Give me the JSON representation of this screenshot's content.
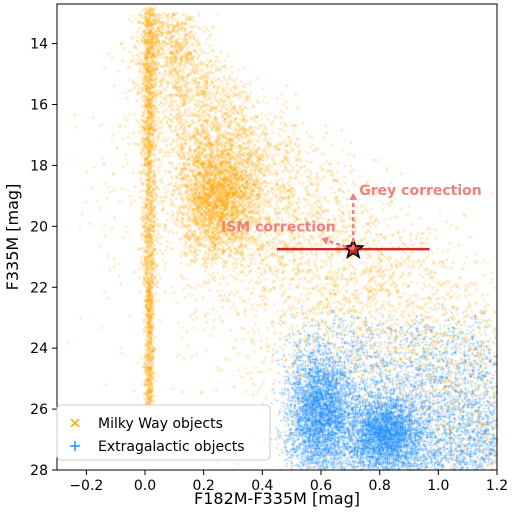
{
  "chart_data": {
    "type": "scatter",
    "xlabel": "F182M-F335M [mag]",
    "ylabel": "F335M [mag]",
    "xlim": [
      -0.3,
      1.2
    ],
    "ylim": [
      28,
      12.7
    ],
    "y_inverted": true,
    "x_ticks": [
      -0.2,
      0.0,
      0.2,
      0.4,
      0.6,
      0.8,
      1.0,
      1.2
    ],
    "x_tick_labels": [
      "−0.2",
      "0.0",
      "0.2",
      "0.4",
      "0.6",
      "0.8",
      "1.0",
      "1.2"
    ],
    "y_ticks": [
      14,
      16,
      18,
      20,
      22,
      24,
      26,
      28
    ],
    "y_tick_labels": [
      "14",
      "16",
      "18",
      "20",
      "22",
      "24",
      "26",
      "28"
    ],
    "grid": false,
    "legend": {
      "placement": "lower-left",
      "entries": [
        {
          "label": "Milky Way objects",
          "marker": "x",
          "color": "#ffa500"
        },
        {
          "label": "Extragalactic objects",
          "marker": "+",
          "color": "#1e90ff"
        }
      ]
    },
    "series": [
      {
        "name": "Milky Way objects",
        "marker": "x",
        "color": "#ffa500",
        "distribution": [
          {
            "component": "narrow vertical sequence",
            "x_center": 0.02,
            "y_range": [
              12.7,
              26.0
            ]
          },
          {
            "component": "giant/dwarf branch",
            "x_range": [
              0.0,
              1.2
            ],
            "y_range": [
              13,
              28
            ],
            "peak": [
              0.25,
              19.0
            ]
          }
        ]
      },
      {
        "name": "Extragalactic objects",
        "marker": "+",
        "color": "#1e90ff",
        "distribution": [
          {
            "component": "faint red cloud",
            "x_range": [
              0.45,
              1.2
            ],
            "y_range": [
              22.5,
              28
            ],
            "peak": [
              0.6,
              26.0
            ]
          }
        ]
      }
    ],
    "highlighted_source": {
      "x": 0.71,
      "y": 20.75,
      "marker": "star",
      "color": "#d62728",
      "xerr": [
        0.45,
        0.97
      ]
    },
    "annotations": [
      {
        "text": "Grey correction",
        "color": "#f08080",
        "arrow_from": [
          0.71,
          20.75
        ],
        "arrow_to": [
          0.71,
          18.9
        ]
      },
      {
        "text": "ISM correction",
        "color": "#f08080",
        "arrow_from": [
          0.71,
          20.75
        ],
        "arrow_to": [
          0.6,
          20.4
        ]
      }
    ]
  }
}
